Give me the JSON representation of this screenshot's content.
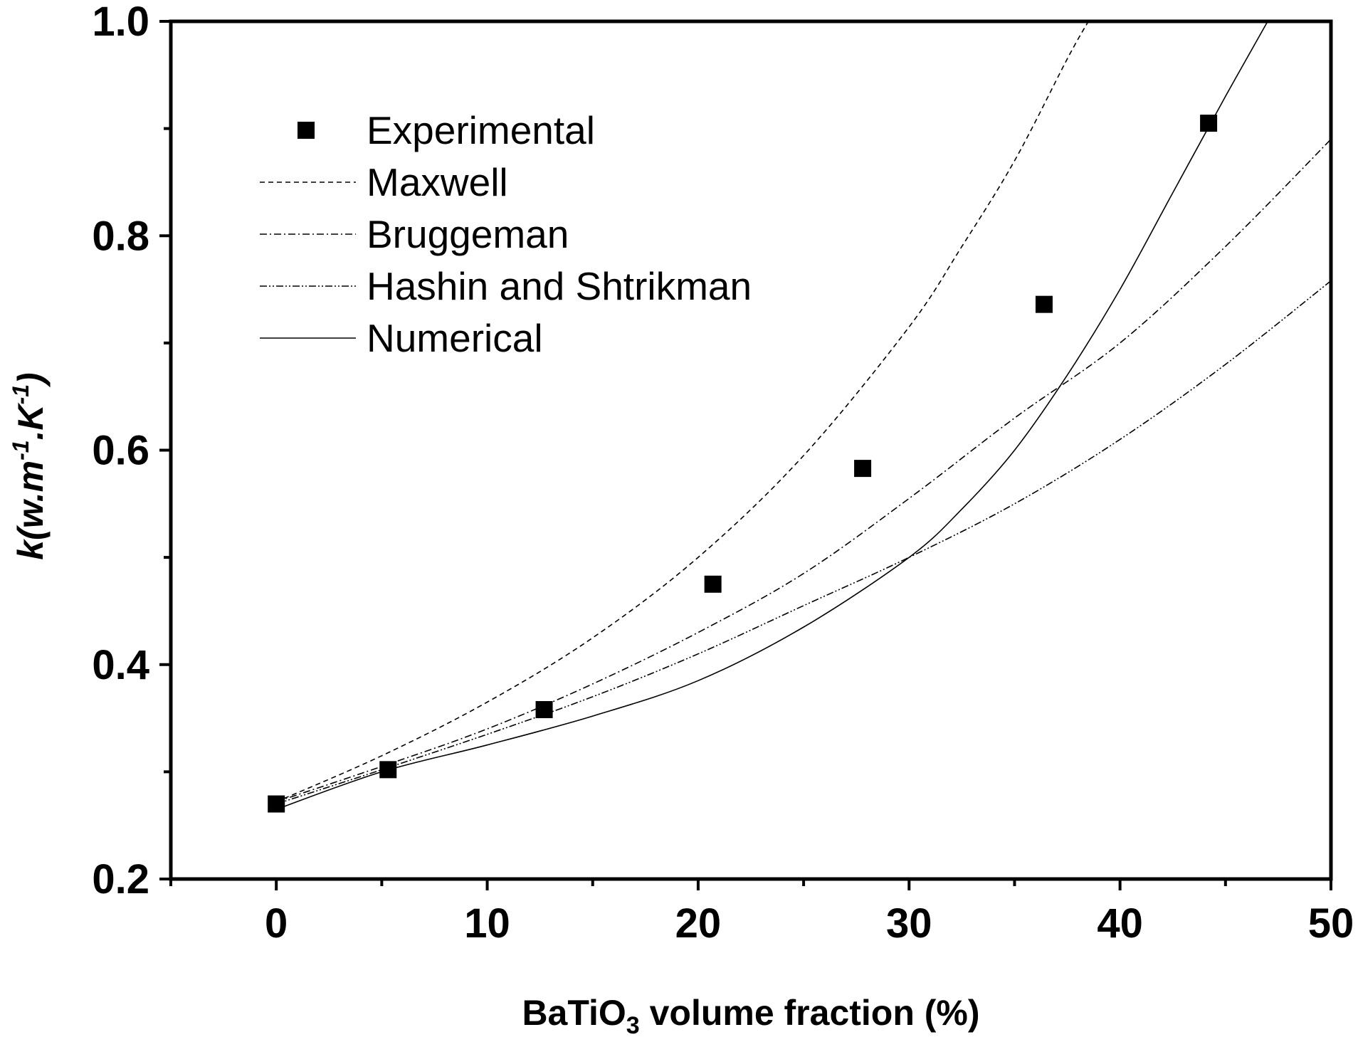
{
  "chart_data": {
    "type": "scatter",
    "xlabel": {
      "main": "BaTiO",
      "sub": "3",
      "rest": " volume fraction (%)"
    },
    "ylabel": {
      "k": "k",
      "open": "(w.m",
      "sup1": "-1",
      "mid": ".K",
      "sup2": "-1",
      "close": ")"
    },
    "xlim": [
      -5,
      50
    ],
    "ylim": [
      0.2,
      1.0
    ],
    "xticks": [
      0,
      10,
      20,
      30,
      40,
      50
    ],
    "xtick_labels": [
      "0",
      "10",
      "20",
      "30",
      "40",
      "50"
    ],
    "x_minor_ticks": [
      -5,
      5,
      15,
      25,
      35,
      45
    ],
    "yticks": [
      0.2,
      0.4,
      0.6,
      0.8,
      1.0
    ],
    "ytick_labels": [
      "0.2",
      "0.4",
      "0.6",
      "0.8",
      "1.0"
    ],
    "y_minor_ticks": [
      0.3,
      0.5,
      0.7,
      0.9
    ],
    "legend_position": "top-left",
    "series": [
      {
        "name": "Experimental",
        "kind": "markers",
        "x": [
          0,
          5.3,
          12.7,
          20.7,
          27.8,
          36.4,
          44.2
        ],
        "y": [
          0.27,
          0.302,
          0.358,
          0.475,
          0.583,
          0.736,
          0.905
        ]
      },
      {
        "name": "Maxwell",
        "kind": "line",
        "dash": "dashed",
        "x": [
          0,
          5,
          10,
          15,
          20,
          25,
          30,
          32.5,
          35,
          37.5,
          38.5
        ],
        "y": [
          0.272,
          0.315,
          0.365,
          0.425,
          0.5,
          0.595,
          0.715,
          0.79,
          0.87,
          0.965,
          1.0
        ]
      },
      {
        "name": "Bruggeman",
        "kind": "line",
        "dash": "dashdot",
        "x": [
          0,
          5,
          10,
          15,
          20,
          25,
          30,
          35,
          40,
          45,
          50
        ],
        "y": [
          0.272,
          0.305,
          0.34,
          0.382,
          0.43,
          0.485,
          0.555,
          0.63,
          0.7,
          0.79,
          0.89
        ]
      },
      {
        "name": "Hashin and Shtrikman",
        "kind": "line",
        "dash": "dashdotdot",
        "x": [
          0,
          5,
          10,
          15,
          20,
          25,
          30,
          35,
          40,
          45,
          50
        ],
        "y": [
          0.27,
          0.302,
          0.335,
          0.37,
          0.41,
          0.455,
          0.5,
          0.55,
          0.61,
          0.68,
          0.758
        ]
      },
      {
        "name": "Numerical",
        "kind": "line",
        "dash": "solid",
        "x": [
          0,
          5,
          10,
          15,
          20,
          25,
          30,
          32.5,
          35,
          37.5,
          40,
          42.5,
          45,
          47
        ],
        "y": [
          0.265,
          0.3,
          0.325,
          0.352,
          0.385,
          0.435,
          0.5,
          0.545,
          0.6,
          0.67,
          0.75,
          0.84,
          0.93,
          1.0
        ]
      }
    ]
  }
}
